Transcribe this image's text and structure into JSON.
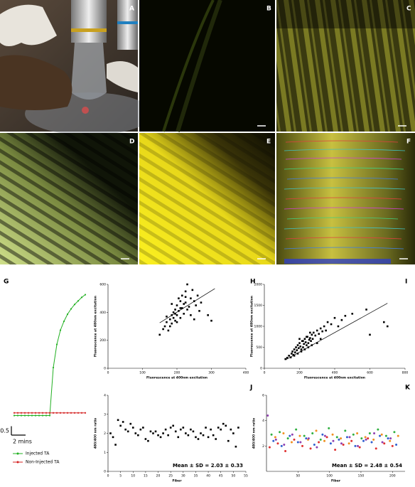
{
  "image_panels": [
    "A",
    "B",
    "C",
    "D",
    "E",
    "F"
  ],
  "chart_data": [
    {
      "type": "line",
      "panel": "G",
      "xlim": [
        0,
        10
      ],
      "ylim": [
        -0.3,
        6.6
      ],
      "x": [
        0,
        0.5,
        1,
        1.5,
        2,
        2.5,
        3,
        3.5,
        4,
        4.5,
        5,
        5.5,
        6,
        6.5,
        7,
        7.5,
        8,
        8.5,
        9,
        9.5,
        10
      ],
      "series": [
        {
          "name": "Injected TA",
          "color": "#22b022",
          "values": [
            -0.1,
            -0.1,
            -0.1,
            -0.1,
            -0.1,
            -0.1,
            -0.1,
            -0.1,
            -0.1,
            -0.1,
            -0.1,
            2.6,
            3.9,
            4.7,
            5.2,
            5.6,
            5.9,
            6.15,
            6.35,
            6.55,
            6.7
          ]
        },
        {
          "name": "Non-Injected TA",
          "color": "#d42020",
          "values": [
            0.05,
            0.05,
            0.05,
            0.05,
            0.05,
            0.05,
            0.05,
            0.05,
            0.05,
            0.05,
            0.05,
            0.05,
            0.05,
            0.05,
            0.05,
            0.05,
            0.05,
            0.05,
            0.05,
            0.05,
            0.05
          ]
        }
      ],
      "scale_bar": {
        "y": 0.5,
        "x": {
          "value": 2,
          "label": "2 mins"
        }
      }
    },
    {
      "type": "scatter",
      "panel": "H",
      "marker": "square",
      "color": "#000000",
      "xlabel": "Fluorescence at 400nm excitation",
      "ylabel": "Fluorescence at 480nm excitation",
      "xlim": [
        0,
        400
      ],
      "ylim": [
        0,
        600
      ],
      "xticks": [
        0,
        100,
        200,
        300,
        400
      ],
      "yticks": [
        0,
        200,
        400,
        600
      ],
      "x": [
        150,
        160,
        165,
        170,
        175,
        180,
        185,
        185,
        190,
        190,
        195,
        195,
        200,
        200,
        205,
        205,
        210,
        210,
        215,
        215,
        220,
        220,
        225,
        225,
        230,
        230,
        235,
        240,
        240,
        245,
        250,
        250,
        255,
        260,
        265,
        270,
        180,
        200,
        210,
        195,
        225,
        300,
        290,
        170,
        185
      ],
      "values": [
        240,
        280,
        300,
        330,
        270,
        350,
        380,
        320,
        400,
        360,
        420,
        340,
        450,
        380,
        500,
        410,
        480,
        360,
        520,
        430,
        460,
        390,
        550,
        470,
        600,
        420,
        440,
        500,
        380,
        560,
        480,
        350,
        450,
        520,
        410,
        470,
        300,
        330,
        430,
        390,
        510,
        340,
        380,
        370,
        460
      ],
      "fit_line": {
        "x": [
          150,
          310
        ],
        "y": [
          325,
          570
        ]
      }
    },
    {
      "type": "scatter",
      "panel": "I",
      "marker": "square",
      "color": "#000000",
      "xlabel": "Fluorescence at 400nm excitation",
      "ylabel": "Fluorescence at 480nm excitation",
      "xlim": [
        0,
        800
      ],
      "ylim": [
        0,
        2000
      ],
      "xticks": [
        0,
        200,
        400,
        600,
        800
      ],
      "yticks": [
        0,
        500,
        1000,
        1500,
        2000
      ],
      "x": [
        120,
        130,
        140,
        150,
        155,
        160,
        165,
        170,
        175,
        180,
        185,
        190,
        195,
        200,
        205,
        210,
        215,
        220,
        225,
        230,
        235,
        240,
        245,
        250,
        255,
        260,
        265,
        270,
        275,
        280,
        290,
        300,
        310,
        320,
        330,
        340,
        350,
        360,
        380,
        400,
        420,
        440,
        460,
        500,
        580,
        600,
        680,
        700,
        170,
        190,
        210,
        230,
        250,
        270,
        200,
        220,
        240,
        260,
        300,
        320
      ],
      "values": [
        220,
        250,
        300,
        260,
        350,
        400,
        320,
        450,
        380,
        500,
        430,
        550,
        480,
        600,
        520,
        450,
        650,
        500,
        580,
        700,
        620,
        550,
        750,
        600,
        680,
        720,
        650,
        800,
        700,
        850,
        780,
        900,
        820,
        950,
        880,
        1000,
        900,
        1100,
        1050,
        1200,
        1000,
        1150,
        1250,
        1300,
        1400,
        800,
        1100,
        1000,
        300,
        350,
        400,
        450,
        500,
        550,
        700,
        650,
        750,
        850,
        600,
        700
      ],
      "fit_line": {
        "x": [
          120,
          700
        ],
        "y": [
          200,
          1550
        ]
      }
    },
    {
      "type": "scatter",
      "panel": "J",
      "marker": "square",
      "color": "#000000",
      "xlabel": "Fiber",
      "ylabel": "480/400 nm ratio",
      "annotation": "Mean ± SD = 2.03 ± 0.33",
      "xlim": [
        0,
        55
      ],
      "ylim": [
        0,
        4
      ],
      "xticks": [
        0,
        5,
        10,
        15,
        20,
        25,
        30,
        35,
        40,
        45,
        50,
        55
      ],
      "yticks": [
        0,
        1,
        2,
        3,
        4
      ],
      "x": [
        1,
        2,
        3,
        4,
        5,
        6,
        7,
        8,
        9,
        10,
        11,
        12,
        13,
        14,
        15,
        16,
        17,
        18,
        19,
        20,
        21,
        22,
        23,
        24,
        25,
        26,
        27,
        28,
        29,
        30,
        31,
        32,
        33,
        34,
        35,
        36,
        37,
        38,
        39,
        40,
        41,
        42,
        43,
        44,
        45,
        46,
        47,
        48,
        49,
        50,
        51,
        52
      ],
      "values": [
        2.0,
        1.8,
        1.4,
        2.7,
        2.4,
        2.6,
        2.2,
        2.1,
        2.5,
        2.3,
        2.0,
        1.9,
        2.2,
        2.3,
        1.7,
        1.6,
        2.1,
        2.0,
        2.1,
        1.9,
        1.8,
        2.0,
        2.2,
        1.9,
        2.3,
        2.4,
        2.1,
        1.8,
        2.2,
        2.3,
        2.0,
        1.9,
        2.2,
        2.1,
        1.8,
        1.7,
        2.0,
        1.9,
        2.3,
        1.8,
        2.2,
        1.9,
        1.7,
        2.3,
        2.2,
        2.5,
        2.4,
        1.6,
        2.2,
        2.0,
        1.3,
        2.3
      ]
    },
    {
      "type": "scatter",
      "panel": "K",
      "marker": "circle",
      "xlabel": "Fiber",
      "ylabel": "480/400 nm ratio",
      "annotation": "Mean ± SD = 2.48 ± 0.54",
      "xlim": [
        0,
        220
      ],
      "ylim": [
        0,
        6
      ],
      "xticks": [
        50,
        100,
        150,
        200
      ],
      "yticks": [
        2,
        4,
        6
      ],
      "series": [
        {
          "color": "#e03030",
          "x": [
            5,
            18,
            30,
            44,
            57,
            70,
            83,
            96,
            109,
            122,
            135,
            148,
            161,
            174,
            187,
            200
          ],
          "values": [
            1.9,
            2.2,
            1.6,
            2.5,
            2.0,
            1.8,
            2.3,
            2.7,
            1.7,
            2.1,
            2.4,
            1.9,
            2.6,
            1.8,
            2.2,
            2.0
          ]
        },
        {
          "color": "#30b040",
          "x": [
            8,
            21,
            34,
            47,
            60,
            73,
            86,
            99,
            112,
            125,
            138,
            151,
            164,
            177,
            190,
            203
          ],
          "values": [
            2.9,
            3.1,
            2.6,
            3.3,
            2.8,
            3.0,
            2.5,
            3.4,
            2.7,
            3.2,
            2.9,
            2.6,
            3.0,
            3.3,
            2.8,
            3.1
          ]
        },
        {
          "color": "#3060d0",
          "x": [
            11,
            24,
            37,
            50,
            63,
            76,
            89,
            102,
            115,
            128,
            141,
            154,
            167,
            180,
            193,
            206
          ],
          "values": [
            2.4,
            2.0,
            2.8,
            2.3,
            2.6,
            2.1,
            2.9,
            2.2,
            2.5,
            2.7,
            2.0,
            2.4,
            2.3,
            2.8,
            2.6,
            2.1
          ]
        },
        {
          "color": "#f09020",
          "x": [
            14,
            27,
            40,
            53,
            66,
            79,
            92,
            105,
            118,
            131,
            144,
            157,
            170,
            183,
            196,
            209
          ],
          "values": [
            2.7,
            3.0,
            2.3,
            2.8,
            2.5,
            3.2,
            2.4,
            2.9,
            2.6,
            2.2,
            3.0,
            2.7,
            2.5,
            2.9,
            2.4,
            2.8
          ]
        },
        {
          "color": "#9040b0",
          "x": [
            2,
            15,
            28,
            41,
            54,
            67,
            80,
            93,
            106,
            119,
            132,
            145,
            158,
            171,
            184,
            197
          ],
          "values": [
            4.4,
            2.5,
            2.1,
            2.9,
            2.3,
            2.6,
            1.9,
            2.8,
            2.4,
            2.2,
            2.7,
            2.0,
            2.5,
            3.0,
            2.3,
            2.6
          ]
        }
      ]
    }
  ]
}
